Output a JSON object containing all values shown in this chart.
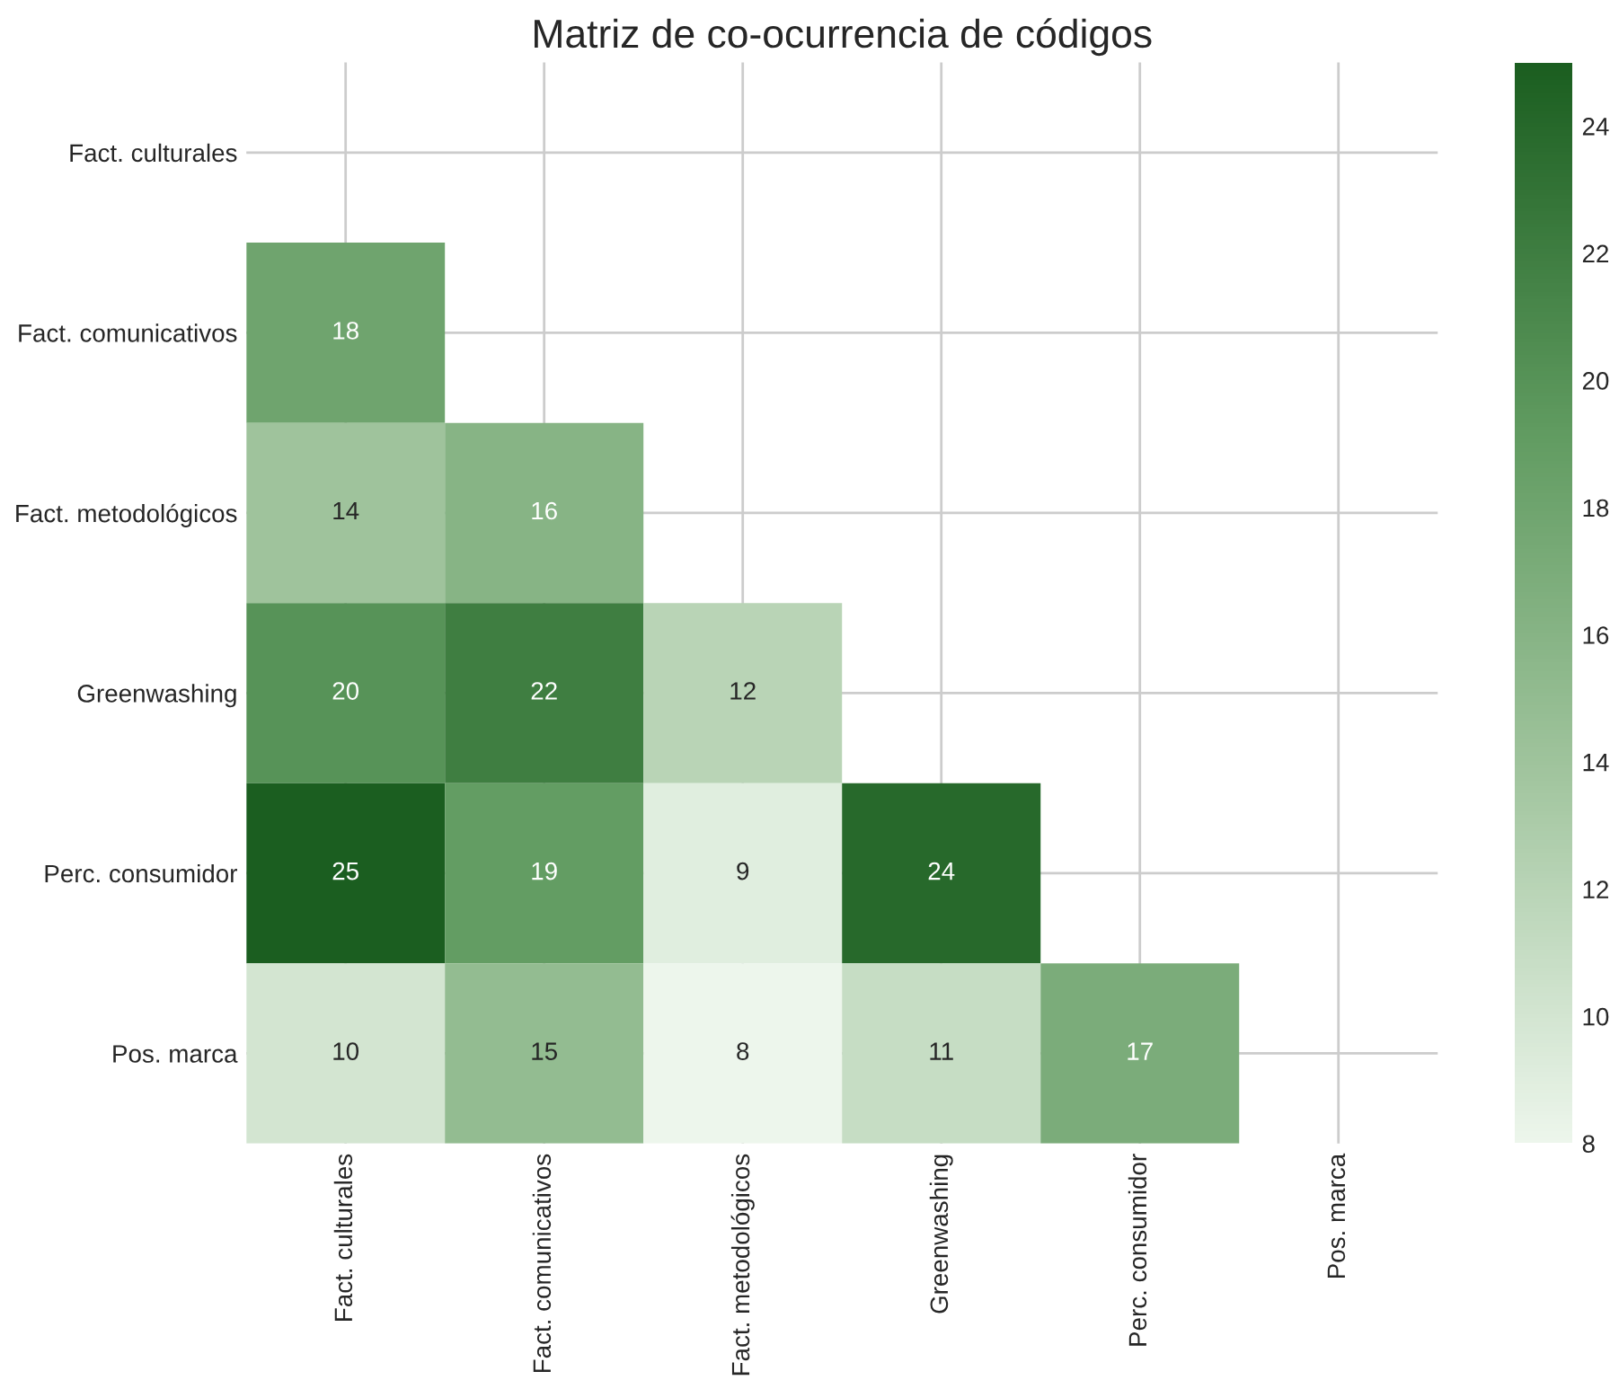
{
  "chart_data": {
    "type": "heatmap",
    "title": "Matriz de co-ocurrencia de códigos",
    "categories": [
      "Fact. culturales",
      "Fact. comunicativos",
      "Fact. metodológicos",
      "Greenwashing",
      "Perc. consumidor",
      "Pos. marca"
    ],
    "y_categories": [
      "Fact. culturales",
      "Fact. comunicativos",
      "Fact. metodológicos",
      "Greenwashing",
      "Perc. consumidor",
      "Pos. marca"
    ],
    "cells": [
      [
        null,
        null,
        null,
        null,
        null,
        null
      ],
      [
        18,
        null,
        null,
        null,
        null,
        null
      ],
      [
        14,
        16,
        null,
        null,
        null,
        null
      ],
      [
        20,
        22,
        12,
        null,
        null,
        null
      ],
      [
        25,
        19,
        9,
        24,
        null,
        null
      ],
      [
        10,
        15,
        8,
        11,
        17,
        null
      ]
    ],
    "clim": [
      8,
      25
    ],
    "cticks": [
      8,
      10,
      12,
      14,
      16,
      18,
      20,
      22,
      24
    ],
    "data_labels": true,
    "grid": true
  }
}
